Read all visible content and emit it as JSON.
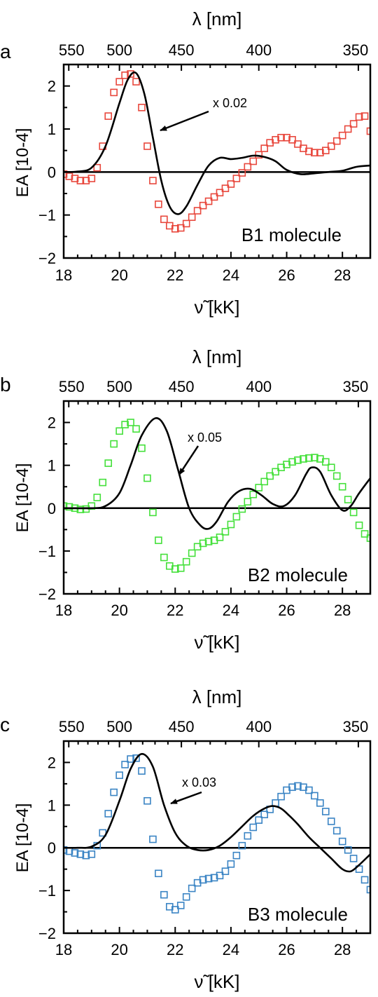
{
  "chart_data": [
    {
      "panel": "a",
      "type": "line",
      "label": "B1 molecule",
      "scale_note": "x 0.02",
      "marker_color": "#e8473c",
      "top_axis_label": "λ [nm]",
      "top_ticks": [
        "550",
        "500",
        "450",
        "400",
        "350"
      ],
      "xlabel": "ν̃ [kK]",
      "ylabel": "EA [10-4]",
      "xlim": [
        18,
        29
      ],
      "ylim": [
        -2,
        2.5
      ],
      "x_ticks": [
        "18",
        "20",
        "22",
        "24",
        "26",
        "28"
      ],
      "y_ticks": [
        "−2",
        "−1",
        "0",
        "1",
        "2"
      ],
      "series": [
        {
          "style": "line",
          "x": [
            18,
            18.5,
            19,
            19.5,
            20,
            20.3,
            20.6,
            20.9,
            21.2,
            21.5,
            21.8,
            22.1,
            22.4,
            22.8,
            23.2,
            23.6,
            24,
            24.4,
            24.8,
            25.2,
            25.6,
            26,
            26.5,
            27,
            27.5,
            28,
            28.5,
            29
          ],
          "y": [
            0,
            0.01,
            0.1,
            0.6,
            1.6,
            2.15,
            2.3,
            1.8,
            0.8,
            -0.2,
            -0.8,
            -0.98,
            -0.8,
            -0.3,
            0.15,
            0.33,
            0.3,
            0.33,
            0.38,
            0.35,
            0.25,
            0.05,
            -0.05,
            -0.03,
            0,
            0.03,
            0.12,
            0.15
          ]
        },
        {
          "style": "markers",
          "x": [
            18,
            18.2,
            18.4,
            18.6,
            18.8,
            19,
            19.2,
            19.4,
            19.6,
            19.8,
            20,
            20.2,
            20.4,
            20.6,
            20.8,
            21,
            21.2,
            21.4,
            21.6,
            21.8,
            22,
            22.2,
            22.4,
            22.6,
            22.8,
            23,
            23.2,
            23.4,
            23.6,
            23.8,
            24,
            24.2,
            24.4,
            24.6,
            24.8,
            25,
            25.2,
            25.4,
            25.6,
            25.8,
            26,
            26.2,
            26.4,
            26.6,
            26.8,
            27,
            27.2,
            27.4,
            27.6,
            27.8,
            28,
            28.2,
            28.4,
            28.6,
            28.8,
            29
          ],
          "y": [
            -0.05,
            -0.1,
            -0.15,
            -0.2,
            -0.2,
            -0.15,
            0.1,
            0.6,
            1.3,
            1.85,
            2.1,
            2.25,
            2.28,
            2.1,
            1.5,
            0.6,
            -0.2,
            -0.75,
            -1.1,
            -1.25,
            -1.32,
            -1.3,
            -1.2,
            -1.05,
            -0.9,
            -0.78,
            -0.68,
            -0.58,
            -0.48,
            -0.38,
            -0.28,
            -0.15,
            -0.02,
            0.12,
            0.25,
            0.4,
            0.55,
            0.68,
            0.75,
            0.8,
            0.8,
            0.75,
            0.65,
            0.55,
            0.48,
            0.45,
            0.45,
            0.5,
            0.6,
            0.72,
            0.85,
            1.0,
            1.12,
            1.28,
            1.3,
            0.95
          ]
        }
      ]
    },
    {
      "panel": "b",
      "type": "line",
      "label": "B2 molecule",
      "scale_note": "x 0.05",
      "marker_color": "#44e03a",
      "top_axis_label": "λ [nm]",
      "top_ticks": [
        "550",
        "500",
        "450",
        "400",
        "350"
      ],
      "xlabel": "ν̃ [kK]",
      "ylabel": "EA [10-4]",
      "xlim": [
        18,
        29
      ],
      "ylim": [
        -2,
        2.5
      ],
      "x_ticks": [
        "18",
        "20",
        "22",
        "24",
        "26",
        "28"
      ],
      "y_ticks": [
        "−2",
        "−1",
        "0",
        "1",
        "2"
      ],
      "series": [
        {
          "style": "line",
          "x": [
            18,
            19,
            19.5,
            20,
            20.4,
            20.8,
            21.3,
            21.7,
            22.1,
            22.5,
            22.9,
            23.2,
            23.5,
            23.9,
            24.3,
            24.7,
            25.1,
            25.5,
            25.9,
            26.3,
            26.7,
            26.9,
            27.2,
            27.6,
            28.0,
            28.3,
            28.6,
            29
          ],
          "y": [
            0,
            0,
            0.05,
            0.35,
            1.0,
            1.7,
            2.1,
            1.8,
            0.9,
            0.0,
            -0.4,
            -0.48,
            -0.3,
            0.15,
            0.4,
            0.45,
            0.3,
            0.1,
            0.05,
            0.3,
            0.8,
            0.95,
            0.85,
            0.3,
            -0.05,
            0.05,
            0.35,
            0.7
          ]
        },
        {
          "style": "markers",
          "x": [
            18,
            18.2,
            18.4,
            18.6,
            18.8,
            19,
            19.2,
            19.4,
            19.6,
            19.8,
            20,
            20.2,
            20.4,
            20.6,
            20.8,
            21,
            21.2,
            21.4,
            21.6,
            21.8,
            22,
            22.2,
            22.4,
            22.6,
            22.8,
            23,
            23.2,
            23.4,
            23.6,
            23.8,
            24,
            24.2,
            24.4,
            24.6,
            24.8,
            25,
            25.2,
            25.4,
            25.6,
            25.8,
            26,
            26.2,
            26.4,
            26.6,
            26.8,
            27,
            27.2,
            27.4,
            27.6,
            27.8,
            28,
            28.2,
            28.4,
            28.6,
            28.8,
            29
          ],
          "y": [
            0.05,
            0.03,
            0,
            -0.03,
            -0.02,
            0.05,
            0.25,
            0.6,
            1.05,
            1.5,
            1.8,
            1.95,
            2.0,
            1.85,
            1.4,
            0.7,
            -0.1,
            -0.75,
            -1.15,
            -1.35,
            -1.42,
            -1.4,
            -1.25,
            -1.05,
            -0.9,
            -0.82,
            -0.78,
            -0.75,
            -0.68,
            -0.55,
            -0.38,
            -0.2,
            -0.02,
            0.15,
            0.32,
            0.48,
            0.62,
            0.75,
            0.85,
            0.95,
            1.02,
            1.08,
            1.12,
            1.15,
            1.17,
            1.18,
            1.15,
            1.08,
            0.95,
            0.75,
            0.5,
            0.2,
            -0.1,
            -0.4,
            -0.6,
            -0.7
          ]
        }
      ]
    },
    {
      "panel": "c",
      "type": "line",
      "label": "B3 molecule",
      "scale_note": "x 0.03",
      "marker_color": "#3a84c4",
      "top_axis_label": "λ [nm]",
      "top_ticks": [
        "550",
        "500",
        "450",
        "400",
        "350"
      ],
      "xlabel": "ν̃ [kK]",
      "ylabel": "EA [10-4]",
      "xlim": [
        18,
        29
      ],
      "ylim": [
        -2,
        2.5
      ],
      "x_ticks": [
        "18",
        "20",
        "22",
        "24",
        "26",
        "28"
      ],
      "y_ticks": [
        "−2",
        "−1",
        "0",
        "1",
        "2"
      ],
      "series": [
        {
          "style": "line",
          "x": [
            18,
            18.5,
            19,
            19.5,
            20,
            20.4,
            20.8,
            21.2,
            21.6,
            22,
            22.4,
            22.8,
            23.2,
            23.6,
            24,
            24.4,
            24.8,
            25.2,
            25.5,
            25.8,
            26.1,
            26.4,
            26.8,
            27.2,
            27.6,
            28,
            28.3,
            28.6,
            29
          ],
          "y": [
            0,
            0,
            0.03,
            0.3,
            1.1,
            1.85,
            2.2,
            1.9,
            1.0,
            0.35,
            0.05,
            -0.05,
            -0.05,
            0.05,
            0.25,
            0.5,
            0.75,
            0.92,
            0.98,
            0.92,
            0.75,
            0.55,
            0.25,
            0.0,
            -0.25,
            -0.5,
            -0.55,
            -0.4,
            -0.15
          ]
        },
        {
          "style": "markers",
          "x": [
            18,
            18.2,
            18.4,
            18.6,
            18.8,
            19,
            19.2,
            19.4,
            19.6,
            19.8,
            20,
            20.2,
            20.4,
            20.6,
            20.8,
            21,
            21.2,
            21.4,
            21.6,
            21.8,
            22,
            22.2,
            22.4,
            22.6,
            22.8,
            23,
            23.2,
            23.4,
            23.6,
            23.8,
            24,
            24.2,
            24.4,
            24.6,
            24.8,
            25,
            25.2,
            25.4,
            25.6,
            25.8,
            26,
            26.2,
            26.4,
            26.6,
            26.8,
            27,
            27.2,
            27.4,
            27.6,
            27.8,
            28,
            28.2,
            28.4,
            28.6,
            28.8,
            29
          ],
          "y": [
            -0.05,
            -0.08,
            -0.12,
            -0.15,
            -0.18,
            -0.15,
            0.05,
            0.35,
            0.8,
            1.3,
            1.7,
            1.95,
            2.08,
            2.1,
            1.8,
            1.1,
            0.2,
            -0.6,
            -1.1,
            -1.38,
            -1.45,
            -1.35,
            -1.15,
            -0.95,
            -0.82,
            -0.75,
            -0.72,
            -0.7,
            -0.65,
            -0.55,
            -0.38,
            -0.18,
            0.05,
            0.28,
            0.48,
            0.65,
            0.78,
            0.9,
            1.05,
            1.2,
            1.35,
            1.42,
            1.45,
            1.42,
            1.35,
            1.22,
            1.05,
            0.85,
            0.62,
            0.4,
            0.15,
            -0.05,
            -0.25,
            -0.5,
            -0.75,
            -0.98
          ]
        }
      ]
    }
  ]
}
